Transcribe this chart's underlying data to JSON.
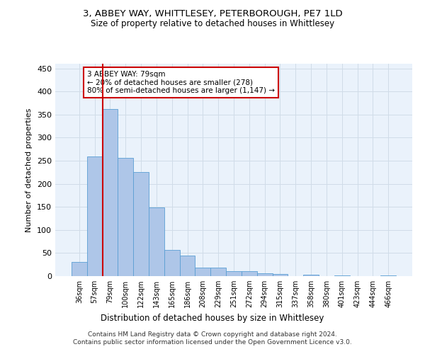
{
  "title": "3, ABBEY WAY, WHITTLESEY, PETERBOROUGH, PE7 1LD",
  "subtitle": "Size of property relative to detached houses in Whittlesey",
  "xlabel": "Distribution of detached houses by size in Whittlesey",
  "ylabel": "Number of detached properties",
  "categories": [
    "36sqm",
    "57sqm",
    "79sqm",
    "100sqm",
    "122sqm",
    "143sqm",
    "165sqm",
    "186sqm",
    "208sqm",
    "229sqm",
    "251sqm",
    "272sqm",
    "294sqm",
    "315sqm",
    "337sqm",
    "358sqm",
    "380sqm",
    "401sqm",
    "423sqm",
    "444sqm",
    "466sqm"
  ],
  "values": [
    31,
    259,
    362,
    256,
    226,
    148,
    57,
    45,
    19,
    19,
    10,
    10,
    6,
    5,
    0,
    3,
    0,
    1,
    0,
    0,
    1
  ],
  "bar_color": "#aec6e8",
  "bar_edge_color": "#5a9fd4",
  "vline_index": 2,
  "vline_color": "#cc0000",
  "annotation_text": "3 ABBEY WAY: 79sqm\n← 20% of detached houses are smaller (278)\n80% of semi-detached houses are larger (1,147) →",
  "annotation_box_color": "#ffffff",
  "annotation_box_edge": "#cc0000",
  "ylim": [
    0,
    460
  ],
  "yticks": [
    0,
    50,
    100,
    150,
    200,
    250,
    300,
    350,
    400,
    450
  ],
  "grid_color": "#d0dce8",
  "bg_color": "#eaf2fb",
  "footer": "Contains HM Land Registry data © Crown copyright and database right 2024.\nContains public sector information licensed under the Open Government Licence v3.0."
}
